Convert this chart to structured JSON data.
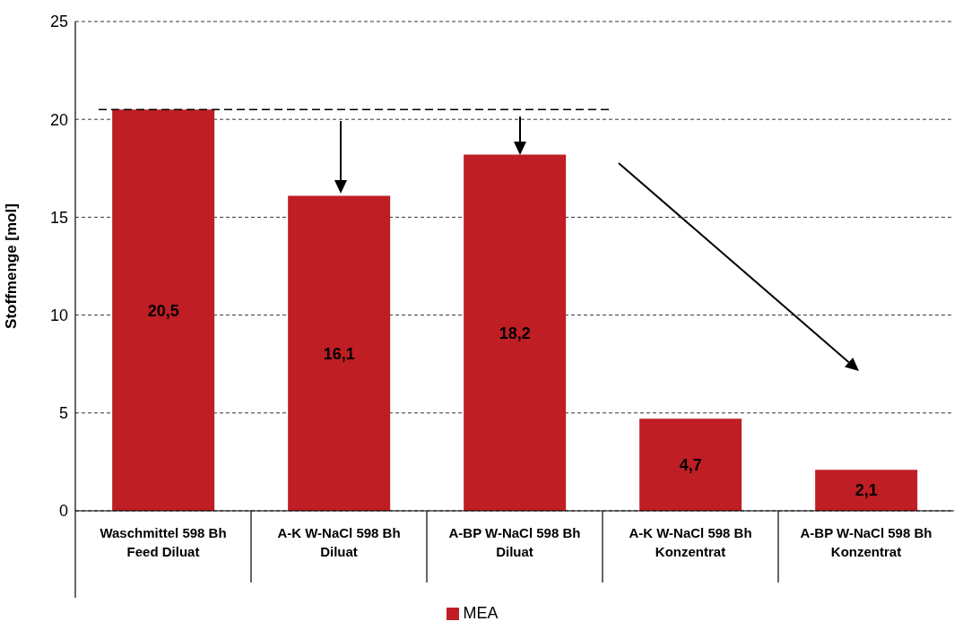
{
  "chart_data": {
    "type": "bar",
    "ylabel": "Stoffmenge [mol]",
    "categories": [
      "Waschmittel 598 Bh\nFeed Diluat",
      "A-K W-NaCl 598 Bh\nDiluat",
      "A-BP W-NaCl 598 Bh\nDiluat",
      "A-K W-NaCl 598 Bh\nKonzentrat",
      "A-BP W-NaCl 598 Bh\nKonzentrat"
    ],
    "series": [
      {
        "name": "MEA",
        "color": "#be1e24",
        "values": [
          20.5,
          16.1,
          18.2,
          4.7,
          2.1
        ],
        "value_labels": [
          "20,5",
          "16,1",
          "18,2",
          "4,7",
          "2,1"
        ]
      }
    ],
    "ylim": [
      0,
      25
    ],
    "yticks": [
      0,
      5,
      10,
      15,
      20,
      25
    ],
    "grid": "y",
    "legend": "bottom",
    "ref_lines": [
      {
        "axis": "y",
        "value": 20.5,
        "line_style": "dashed",
        "color": "#000000"
      }
    ]
  }
}
